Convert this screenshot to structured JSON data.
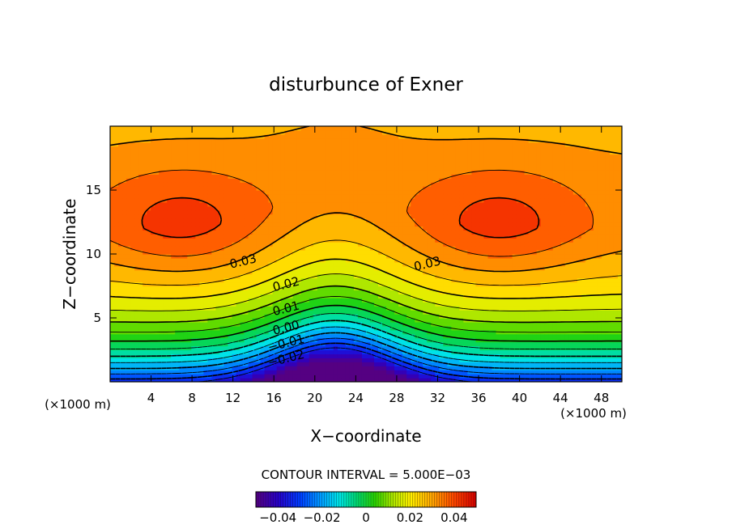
{
  "chart_data": {
    "type": "heatmap",
    "title": "disturbunce of Exner",
    "xlabel": "X−coordinate",
    "ylabel": "Z−coordinate",
    "x_unit": "(×1000 m)",
    "y_unit": "(×1000 m)",
    "xlim": [
      0,
      50
    ],
    "ylim": [
      0,
      20
    ],
    "x_ticks": [
      4,
      8,
      12,
      16,
      20,
      24,
      28,
      32,
      36,
      40,
      44,
      48
    ],
    "y_ticks": [
      5,
      10,
      15
    ],
    "contour_interval_label": "CONTOUR INTERVAL = 5.000E−03",
    "contour_labels": [
      {
        "text": "0.03",
        "x": 13,
        "z": 9.4
      },
      {
        "text": "0.03",
        "x": 31,
        "z": 9.2
      },
      {
        "text": "0.02",
        "x": 17.2,
        "z": 7.6
      },
      {
        "text": "0.01",
        "x": 17.2,
        "z": 5.7
      },
      {
        "text": "0.00",
        "x": 17.2,
        "z": 4.2
      },
      {
        "text": "−0.01",
        "x": 17.2,
        "z": 3.0
      },
      {
        "text": "−0.02",
        "x": 17.2,
        "z": 1.8
      }
    ],
    "colorbar": {
      "range": [
        -0.05,
        0.05
      ],
      "ticks": [
        {
          "value": -0.04,
          "label": "−0.04"
        },
        {
          "value": -0.02,
          "label": "−0.02"
        },
        {
          "value": 0,
          "label": "0"
        },
        {
          "value": 0.02,
          "label": "0.02"
        },
        {
          "value": 0.04,
          "label": "0.04"
        }
      ]
    },
    "field_summary": {
      "max": 0.043,
      "min": -0.037,
      "max_locations": [
        {
          "x": 7,
          "z": 12.5
        },
        {
          "x": 38,
          "z": 12.5
        }
      ],
      "min_location": {
        "x": 22,
        "z": 0.5
      }
    }
  }
}
